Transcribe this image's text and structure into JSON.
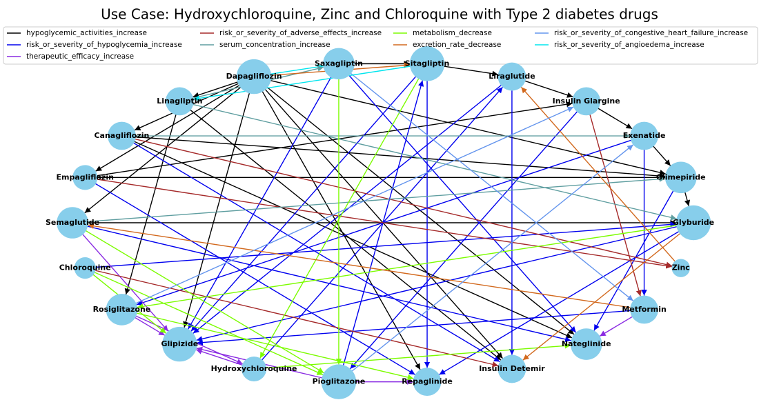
{
  "title": "Use Case: Hydroxychloroquine, Zinc and Chloroquine with Type 2 diabetes drugs",
  "legend": [
    {
      "label": "hypoglycemic_activities_increase",
      "color": "#000000"
    },
    {
      "label": "risk_or_severity_of_hypoglycemia_increase",
      "color": "#0000ee"
    },
    {
      "label": "therapeutic_efficacy_increase",
      "color": "#8a2be2"
    },
    {
      "label": "risk_or_severity_of_adverse_effects_increase",
      "color": "#a52a2a"
    },
    {
      "label": "serum_concentration_increase",
      "color": "#5f9ea0"
    },
    {
      "label": "metabolism_decrease",
      "color": "#7cfc00"
    },
    {
      "label": "excretion_rate_decrease",
      "color": "#d2691e"
    },
    {
      "label": "risk_or_severity_of_congestive_heart_failure_increase",
      "color": "#6495ed"
    },
    {
      "label": "risk_or_severity_of_angioedema_increase",
      "color": "#00e5ee"
    }
  ],
  "nodes": [
    "Glyburide",
    "Glimepiride",
    "Exenatide",
    "Insulin Glargine",
    "Liraglutide",
    "Sitagliptin",
    "Saxagliptin",
    "Dapagliflozin",
    "Linagliptin",
    "Canagliflozin",
    "Empagliflozin",
    "Semaglutide",
    "Chloroquine",
    "Rosiglitazone",
    "Glipizide",
    "Hydroxychloroquine",
    "Pioglitazone",
    "Repaglinide",
    "Insulin Detemir",
    "Nateglinide",
    "Metformin",
    "Zinc"
  ],
  "edges": [
    [
      "Dapagliflozin",
      "Linagliptin",
      "hypoglycemic_activities_increase"
    ],
    [
      "Dapagliflozin",
      "Canagliflozin",
      "hypoglycemic_activities_increase"
    ],
    [
      "Dapagliflozin",
      "Empagliflozin",
      "hypoglycemic_activities_increase"
    ],
    [
      "Dapagliflozin",
      "Semaglutide",
      "hypoglycemic_activities_increase"
    ],
    [
      "Dapagliflozin",
      "Glipizide",
      "hypoglycemic_activities_increase"
    ],
    [
      "Dapagliflozin",
      "Insulin Detemir",
      "hypoglycemic_activities_increase"
    ],
    [
      "Dapagliflozin",
      "Nateglinide",
      "hypoglycemic_activities_increase"
    ],
    [
      "Dapagliflozin",
      "Repaglinide",
      "hypoglycemic_activities_increase"
    ],
    [
      "Dapagliflozin",
      "Glimepiride",
      "hypoglycemic_activities_increase"
    ],
    [
      "Dapagliflozin",
      "Saxagliptin",
      "risk_or_severity_of_angioedema_increase"
    ],
    [
      "Linagliptin",
      "Saxagliptin",
      "serum_concentration_increase"
    ],
    [
      "Saxagliptin",
      "Sitagliptin",
      "hypoglycemic_activities_increase"
    ],
    [
      "Sitagliptin",
      "Liraglutide",
      "hypoglycemic_activities_increase"
    ],
    [
      "Liraglutide",
      "Insulin Glargine",
      "hypoglycemic_activities_increase"
    ],
    [
      "Insulin Glargine",
      "Exenatide",
      "hypoglycemic_activities_increase"
    ],
    [
      "Exenatide",
      "Glimepiride",
      "hypoglycemic_activities_increase"
    ],
    [
      "Glimepiride",
      "Glyburide",
      "hypoglycemic_activities_increase"
    ],
    [
      "Canagliflozin",
      "Glimepiride",
      "hypoglycemic_activities_increase"
    ],
    [
      "Empagliflozin",
      "Glimepiride",
      "hypoglycemic_activities_increase"
    ],
    [
      "Semaglutide",
      "Glyburide",
      "hypoglycemic_activities_increase"
    ],
    [
      "Linagliptin",
      "Rosiglitazone",
      "hypoglycemic_activities_increase"
    ],
    [
      "Linagliptin",
      "Insulin Detemir",
      "hypoglycemic_activities_increase"
    ],
    [
      "Canagliflozin",
      "Nateglinide",
      "hypoglycemic_activities_increase"
    ],
    [
      "Empagliflozin",
      "Insulin Glargine",
      "hypoglycemic_activities_increase"
    ],
    [
      "Saxagliptin",
      "Glipizide",
      "risk_or_severity_of_hypoglycemia_increase"
    ],
    [
      "Saxagliptin",
      "Nateglinide",
      "risk_or_severity_of_hypoglycemia_increase"
    ],
    [
      "Sitagliptin",
      "Glipizide",
      "risk_or_severity_of_hypoglycemia_increase"
    ],
    [
      "Sitagliptin",
      "Repaglinide",
      "risk_or_severity_of_hypoglycemia_increase"
    ],
    [
      "Liraglutide",
      "Glipizide",
      "risk_or_severity_of_hypoglycemia_increase"
    ],
    [
      "Liraglutide",
      "Insulin Detemir",
      "risk_or_severity_of_hypoglycemia_increase"
    ],
    [
      "Exenatide",
      "Rosiglitazone",
      "risk_or_severity_of_hypoglycemia_increase"
    ],
    [
      "Exenatide",
      "Metformin",
      "risk_or_severity_of_hypoglycemia_increase"
    ],
    [
      "Glyburide",
      "Glipizide",
      "risk_or_severity_of_hypoglycemia_increase"
    ],
    [
      "Glyburide",
      "Repaglinide",
      "risk_or_severity_of_hypoglycemia_increase"
    ],
    [
      "Glimepiride",
      "Nateglinide",
      "risk_or_severity_of_hypoglycemia_increase"
    ],
    [
      "Insulin Glargine",
      "Pioglitazone",
      "risk_or_severity_of_hypoglycemia_increase"
    ],
    [
      "Semaglutide",
      "Nateglinide",
      "risk_or_severity_of_hypoglycemia_increase"
    ],
    [
      "Empagliflozin",
      "Repaglinide",
      "risk_or_severity_of_hypoglycemia_increase"
    ],
    [
      "Canagliflozin",
      "Insulin Detemir",
      "risk_or_severity_of_hypoglycemia_increase"
    ],
    [
      "Chloroquine",
      "Glyburide",
      "risk_or_severity_of_hypoglycemia_increase"
    ],
    [
      "Hydroxychloroquine",
      "Liraglutide",
      "risk_or_severity_of_hypoglycemia_increase"
    ],
    [
      "Pioglitazone",
      "Sitagliptin",
      "risk_or_severity_of_hypoglycemia_increase"
    ],
    [
      "Metformin",
      "Glipizide",
      "risk_or_severity_of_hypoglycemia_increase"
    ],
    [
      "Rosiglitazone",
      "Glipizide",
      "therapeutic_efficacy_increase"
    ],
    [
      "Rosiglitazone",
      "Hydroxychloroquine",
      "therapeutic_efficacy_increase"
    ],
    [
      "Pioglitazone",
      "Glipizide",
      "therapeutic_efficacy_increase"
    ],
    [
      "Pioglitazone",
      "Repaglinide",
      "therapeutic_efficacy_increase"
    ],
    [
      "Semaglutide",
      "Glipizide",
      "therapeutic_efficacy_increase"
    ],
    [
      "Metformin",
      "Nateglinide",
      "therapeutic_efficacy_increase"
    ],
    [
      "Hydroxychloroquine",
      "Glipizide",
      "therapeutic_efficacy_increase"
    ],
    [
      "Canagliflozin",
      "Zinc",
      "risk_or_severity_of_adverse_effects_increase"
    ],
    [
      "Empagliflozin",
      "Zinc",
      "risk_or_severity_of_adverse_effects_increase"
    ],
    [
      "Insulin Glargine",
      "Metformin",
      "risk_or_severity_of_adverse_effects_increase"
    ],
    [
      "Chloroquine",
      "Insulin Detemir",
      "risk_or_severity_of_adverse_effects_increase"
    ],
    [
      "Linagliptin",
      "Glyburide",
      "serum_concentration_increase"
    ],
    [
      "Canagliflozin",
      "Exenatide",
      "serum_concentration_increase"
    ],
    [
      "Semaglutide",
      "Glimepiride",
      "serum_concentration_increase"
    ],
    [
      "Chloroquine",
      "Glipizide",
      "metabolism_decrease"
    ],
    [
      "Chloroquine",
      "Pioglitazone",
      "metabolism_decrease"
    ],
    [
      "Rosiglitazone",
      "Repaglinide",
      "metabolism_decrease"
    ],
    [
      "Semaglutide",
      "Pioglitazone",
      "metabolism_decrease"
    ],
    [
      "Glyburide",
      "Rosiglitazone",
      "metabolism_decrease"
    ],
    [
      "Saxagliptin",
      "Pioglitazone",
      "metabolism_decrease"
    ],
    [
      "Sitagliptin",
      "Hydroxychloroquine",
      "metabolism_decrease"
    ],
    [
      "Hydroxychloroquine",
      "Nateglinide",
      "metabolism_decrease"
    ],
    [
      "Dapagliflozin",
      "Sitagliptin",
      "excretion_rate_decrease"
    ],
    [
      "Metformin",
      "Semaglutide",
      "excretion_rate_decrease"
    ],
    [
      "Glyburide",
      "Insulin Detemir",
      "excretion_rate_decrease"
    ],
    [
      "Zinc",
      "Liraglutide",
      "excretion_rate_decrease"
    ],
    [
      "Pioglitazone",
      "Exenatide",
      "risk_or_severity_of_congestive_heart_failure_increase"
    ],
    [
      "Rosiglitazone",
      "Insulin Glargine",
      "risk_or_severity_of_congestive_heart_failure_increase"
    ],
    [
      "Saxagliptin",
      "Metformin",
      "risk_or_severity_of_congestive_heart_failure_increase"
    ],
    [
      "Sitagliptin",
      "Linagliptin",
      "risk_or_severity_of_angioedema_increase"
    ]
  ]
}
